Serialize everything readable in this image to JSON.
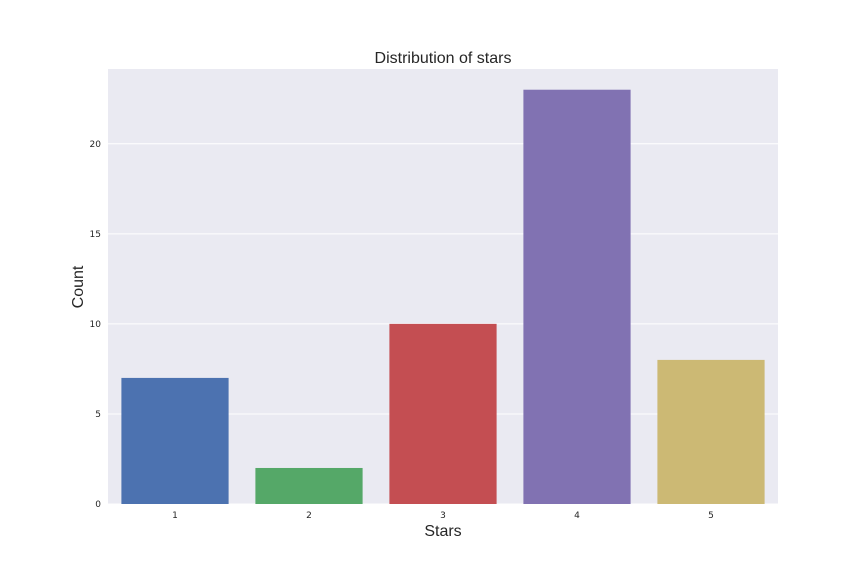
{
  "chart_data": {
    "type": "bar",
    "title": "Distribution of stars",
    "xlabel": "Stars",
    "ylabel": "Count",
    "categories": [
      "1",
      "2",
      "3",
      "4",
      "5"
    ],
    "values": [
      7,
      2,
      10,
      23,
      8
    ],
    "colors": [
      "#4c72b0",
      "#55a868",
      "#c44e52",
      "#8172b2",
      "#ccb974"
    ],
    "yticks": [
      0,
      5,
      10,
      15,
      20
    ],
    "ylim": [
      0,
      24.15
    ],
    "grid": true,
    "background": "#eaeaf2",
    "grid_color": "#ffffff"
  }
}
